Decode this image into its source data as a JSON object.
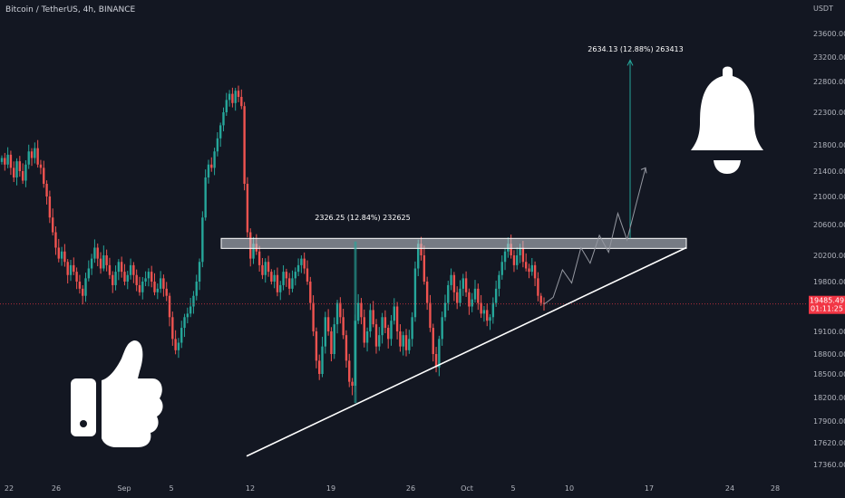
{
  "chart_data": {
    "type": "candlestick",
    "title": "Bitcoin / TetherUS, 4h, BINANCE",
    "currency_label": "USDT",
    "y_ticks": [
      17360,
      17620,
      17900,
      18200,
      18500,
      18800,
      19100,
      19800,
      20200,
      20600,
      21000,
      21400,
      21800,
      22300,
      22800,
      23200,
      23600
    ],
    "y_tick_labels": [
      "17360.00",
      "17620.00",
      "17900.00",
      "18200.00",
      "18500.00",
      "18800.00",
      "19100.00",
      "19800.00",
      "20200.00",
      "20600.00",
      "21000.00",
      "21400.00",
      "21800.00",
      "22300.00",
      "22800.00",
      "23200.00",
      "23600.00"
    ],
    "x_ticks": [
      "22",
      "26",
      "Sep",
      "5",
      "12",
      "19",
      "26",
      "Oct",
      "5",
      "10",
      "17",
      "24",
      "28"
    ],
    "last_price": {
      "value": "19485.49",
      "countdown": "01:11:25"
    },
    "resistance_zone": {
      "low": 20290,
      "high": 20420,
      "from": "Sep 12",
      "to": "Oct 21"
    },
    "ascending_trendline": {
      "from": [
        "Sep 12",
        17460
      ],
      "to": [
        "Oct 21",
        20300
      ]
    },
    "annotations": [
      {
        "text": "2326.25 (12.84%) 232625"
      },
      {
        "text": "2634.13 (12.88%) 263413"
      }
    ],
    "projection_path": [
      19580,
      19980,
      19780,
      20300,
      20080,
      20460,
      20240,
      20760,
      20400,
      20900,
      21450
    ]
  },
  "colors": {
    "background": "#131722",
    "up": "#26a69a",
    "down": "#ef5350",
    "last_price": "#f23645",
    "trendline": "#ffffff",
    "zone": "#c9cdd6"
  },
  "icons": [
    "bell-icon",
    "thumbs-up-icon"
  ]
}
